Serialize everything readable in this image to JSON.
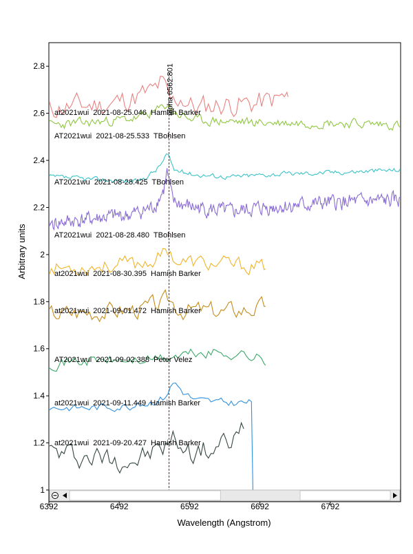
{
  "chart_data": {
    "type": "line",
    "title": "",
    "xlabel": "Wavelength (Angstrom)",
    "ylabel": "Arbitrary units",
    "xlim": [
      6392,
      6892
    ],
    "ylim": [
      1.0,
      2.9
    ],
    "x_ticks": [
      6392,
      6492,
      6592,
      6692,
      6792
    ],
    "x_tick_labels": [
      "6392",
      "6492",
      "6592",
      "6692",
      "6792"
    ],
    "y_ticks": [
      1.0,
      1.2,
      1.4,
      1.6,
      1.8,
      2.0,
      2.2,
      2.4,
      2.6,
      2.8
    ],
    "y_tick_labels": [
      "1",
      "1.2",
      "1.4",
      "1.6",
      "1.8",
      "2",
      "2.2",
      "2.4",
      "2.6",
      "2.8"
    ],
    "grid": false,
    "reference_line": {
      "label": "alpha 6562.801",
      "x": 6562.801,
      "color": "#cc0000"
    },
    "scrollbar": {
      "left_icon": "minus-circle-icon",
      "left_arrow": "arrow-left-icon",
      "right_arrow": "arrow-right-icon",
      "thumb_start": 6591,
      "thumb_end": 6692
    },
    "series": [
      {
        "name": "at2021wui  2021-08-25.046  Hamish Barker",
        "color": "#e8817f",
        "x_start": 6392,
        "x_end": 6506,
        "base": 2.62,
        "amp": 0.045,
        "seed": 11,
        "profile": [
          [
            6392,
            2.62
          ],
          [
            6506,
            2.64
          ]
        ],
        "x_start2": 6506,
        "anchors": [
          [
            6392,
            2.62
          ],
          [
            6430,
            2.63
          ],
          [
            6480,
            2.64
          ],
          [
            6540,
            2.69
          ],
          [
            6552,
            2.73
          ],
          [
            6566,
            2.64
          ],
          [
            6580,
            2.67
          ],
          [
            6600,
            2.62
          ],
          [
            6640,
            2.64
          ],
          [
            6680,
            2.64
          ],
          [
            6720,
            2.66
          ],
          [
            6732,
            2.67
          ]
        ],
        "x_range": [
          6392,
          6732
        ]
      },
      {
        "name": "AT2021wui  2021-08-25.533  TBohlsen",
        "color": "#8ec63f",
        "seed": 23,
        "amp": 0.018,
        "anchors": [
          [
            6392,
            2.55
          ],
          [
            6450,
            2.56
          ],
          [
            6520,
            2.58
          ],
          [
            6552,
            2.62
          ],
          [
            6560,
            2.64
          ],
          [
            6572,
            2.6
          ],
          [
            6600,
            2.57
          ],
          [
            6700,
            2.56
          ],
          [
            6800,
            2.56
          ],
          [
            6892,
            2.55
          ]
        ],
        "x_range": [
          6392,
          6892
        ]
      },
      {
        "name": "AT2021wu  2021-08-28.425  TBohlsen",
        "color": "#39c3c7",
        "seed": 37,
        "amp": 0.009,
        "anchors": [
          [
            6392,
            2.33
          ],
          [
            6450,
            2.32
          ],
          [
            6520,
            2.31
          ],
          [
            6545,
            2.36
          ],
          [
            6555,
            2.4
          ],
          [
            6560,
            2.43
          ],
          [
            6570,
            2.36
          ],
          [
            6600,
            2.34
          ],
          [
            6650,
            2.33
          ],
          [
            6700,
            2.34
          ],
          [
            6800,
            2.35
          ],
          [
            6892,
            2.36
          ]
        ],
        "x_range": [
          6392,
          6892
        ]
      },
      {
        "name": "AT2021wui  2021-08-28.480  TBohlsen",
        "color": "#8a6bd6",
        "seed": 41,
        "amp": 0.028,
        "anchors": [
          [
            6392,
            2.13
          ],
          [
            6450,
            2.15
          ],
          [
            6510,
            2.17
          ],
          [
            6540,
            2.2
          ],
          [
            6555,
            2.27
          ],
          [
            6560,
            2.35
          ],
          [
            6568,
            2.22
          ],
          [
            6600,
            2.2
          ],
          [
            6650,
            2.18
          ],
          [
            6700,
            2.2
          ],
          [
            6800,
            2.22
          ],
          [
            6892,
            2.23
          ]
        ],
        "x_range": [
          6392,
          6892
        ]
      },
      {
        "name": "at2021wui  2021-08-30.395  Hamish Barker",
        "color": "#f0b429",
        "seed": 53,
        "amp": 0.03,
        "anchors": [
          [
            6392,
            1.94
          ],
          [
            6450,
            1.95
          ],
          [
            6520,
            1.96
          ],
          [
            6552,
            1.99
          ],
          [
            6560,
            2.03
          ],
          [
            6575,
            1.97
          ],
          [
            6620,
            1.96
          ],
          [
            6680,
            1.95
          ],
          [
            6700,
            1.94
          ]
        ],
        "x_range": [
          6392,
          6700
        ]
      },
      {
        "name": "at2021wui  2021-09-01.472  Hamish Barker",
        "color": "#c48b18",
        "seed": 67,
        "amp": 0.035,
        "anchors": [
          [
            6392,
            1.75
          ],
          [
            6450,
            1.76
          ],
          [
            6520,
            1.77
          ],
          [
            6552,
            1.79
          ],
          [
            6562,
            1.81
          ],
          [
            6580,
            1.77
          ],
          [
            6640,
            1.76
          ],
          [
            6700,
            1.78
          ]
        ],
        "x_range": [
          6392,
          6700
        ]
      },
      {
        "name": "AT2021wui  2021-09-02.388  Peter Velez",
        "color": "#3aa868",
        "seed": 71,
        "amp": 0.022,
        "anchors": [
          [
            6392,
            1.54
          ],
          [
            6450,
            1.55
          ],
          [
            6520,
            1.55
          ],
          [
            6560,
            1.56
          ],
          [
            6600,
            1.58
          ],
          [
            6660,
            1.58
          ],
          [
            6690,
            1.56
          ],
          [
            6700,
            1.53
          ]
        ],
        "x_range": [
          6392,
          6700
        ]
      },
      {
        "name": "at2021wui  2021-09-11.449  Hamish Barker",
        "color": "#2e8fe0",
        "seed": 83,
        "amp": 0.015,
        "anchors": [
          [
            6392,
            1.35
          ],
          [
            6450,
            1.35
          ],
          [
            6520,
            1.36
          ],
          [
            6555,
            1.39
          ],
          [
            6570,
            1.46
          ],
          [
            6582,
            1.42
          ],
          [
            6600,
            1.38
          ],
          [
            6640,
            1.37
          ],
          [
            6680,
            1.37
          ],
          [
            6682,
            1.0
          ]
        ],
        "x_range": [
          6392,
          6682
        ]
      },
      {
        "name": "at2021wui  2021-09-20.427  Hamish Barker",
        "color": "#34463e",
        "seed": 97,
        "amp": 0.045,
        "anchors": [
          [
            6392,
            1.16
          ],
          [
            6450,
            1.14
          ],
          [
            6520,
            1.13
          ],
          [
            6555,
            1.18
          ],
          [
            6572,
            1.22
          ],
          [
            6590,
            1.16
          ],
          [
            6620,
            1.17
          ],
          [
            6650,
            1.2
          ],
          [
            6669,
            1.26
          ]
        ],
        "x_range": [
          6392,
          6669
        ]
      }
    ]
  }
}
